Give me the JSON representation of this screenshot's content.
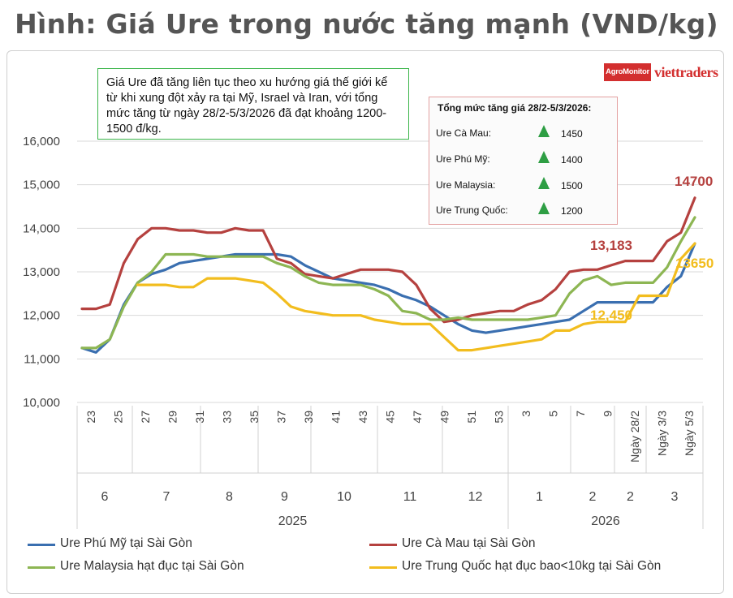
{
  "page_title": "Hình: Giá Ure trong nước tăng mạnh (VND/kg)",
  "logos": {
    "agromonitor": "AgroMonitor",
    "viettraders": "viettraders"
  },
  "note": "Giá Ure đã tăng liên tục theo xu hướng giá thế giới kể từ khi xung đột xảy ra tại Mỹ, Israel và Iran, với tổng mức tăng từ ngày 28/2-5/3/2026 đã đạt khoảng 1200-1500 đ/kg.",
  "increase_table": {
    "title": "Tổng mức tăng giá 28/2-5/3/2026:",
    "rows": [
      {
        "name": "Ure Cà Mau:",
        "value": "1450",
        "icon": "up-triangle-icon"
      },
      {
        "name": "Ure Phú Mỹ:",
        "value": "1400",
        "icon": "up-triangle-icon"
      },
      {
        "name": "Ure Malaysia:",
        "value": "1500",
        "icon": "up-triangle-icon"
      },
      {
        "name": "Ure Trung Quốc:",
        "value": "1200",
        "icon": "up-triangle-icon"
      }
    ]
  },
  "chart_data": {
    "type": "line",
    "ylim": [
      10000,
      16000
    ],
    "yticks": [
      "10,000",
      "11,000",
      "12,000",
      "13,000",
      "14,000",
      "15,000",
      "16,000"
    ],
    "x_labels": [
      "23",
      "25",
      "27",
      "29",
      "31",
      "33",
      "35",
      "37",
      "39",
      "41",
      "43",
      "45",
      "47",
      "49",
      "51",
      "53",
      "3",
      "5",
      "7",
      "9",
      "Ngày 28/2",
      "Ngày 3/3",
      "Ngày 5/3"
    ],
    "month_labels": [
      "6",
      "7",
      "8",
      "9",
      "10",
      "11",
      "12",
      "1",
      "2",
      "2",
      "3"
    ],
    "year_labels": [
      "2025",
      "2026"
    ],
    "series": [
      {
        "name": "Ure Phú Mỹ tại Sài Gòn",
        "color": "#3a6fb0",
        "values": [
          11250,
          11150,
          11450,
          12250,
          12750,
          12950,
          13050,
          13200,
          13250,
          13300,
          13350,
          13400,
          13400,
          13400,
          13400,
          13350,
          13150,
          13000,
          12850,
          12800,
          12750,
          12700,
          12600,
          12450,
          12350,
          12200,
          12000,
          11800,
          11650,
          11600,
          11650,
          11700,
          11750,
          11800,
          11850,
          11900,
          12100,
          12300,
          12300,
          12300,
          12300,
          12300,
          12650,
          12900,
          13650
        ]
      },
      {
        "name": "Ure Cà Mau tại Sài Gòn",
        "color": "#b5413f",
        "values": [
          12150,
          12150,
          12250,
          13200,
          13750,
          14000,
          14000,
          13950,
          13950,
          13900,
          13900,
          14000,
          13950,
          13950,
          13300,
          13200,
          12950,
          12900,
          12850,
          12950,
          13050,
          13050,
          13050,
          13000,
          12700,
          12150,
          11850,
          11900,
          12000,
          12050,
          12100,
          12100,
          12250,
          12350,
          12600,
          13000,
          13050,
          13050,
          13150,
          13250,
          13250,
          13250,
          13700,
          13900,
          14700
        ]
      },
      {
        "name": "Ure Malaysia hạt đục tại Sài Gòn",
        "color": "#8db653",
        "values": [
          11250,
          11250,
          11450,
          12200,
          12750,
          13000,
          13400,
          13400,
          13400,
          13350,
          13350,
          13350,
          13350,
          13350,
          13200,
          13100,
          12900,
          12750,
          12700,
          12700,
          12700,
          12600,
          12450,
          12100,
          12050,
          11900,
          11900,
          11950,
          11900,
          11900,
          11900,
          11900,
          11900,
          11950,
          12000,
          12500,
          12800,
          12900,
          12700,
          12750,
          12750,
          12750,
          13100,
          13700,
          14250
        ]
      },
      {
        "name": "Ure Trung Quốc hạt đục bao<10kg tại Sài Gòn",
        "color": "#f2bd1e",
        "values": [
          null,
          null,
          null,
          null,
          12700,
          12700,
          12700,
          12650,
          12650,
          12850,
          12850,
          12850,
          12800,
          12750,
          12500,
          12200,
          12100,
          12050,
          12000,
          12000,
          12000,
          11900,
          11850,
          11800,
          11800,
          11800,
          11500,
          11200,
          11200,
          11250,
          11300,
          11350,
          11400,
          11450,
          11650,
          11650,
          11800,
          11850,
          11850,
          11850,
          12450,
          12450,
          12450,
          13300,
          13650
        ]
      }
    ],
    "annotations": [
      {
        "text": "14700",
        "color": "#b5413f"
      },
      {
        "text": "13,183",
        "color": "#b5413f"
      },
      {
        "text": "13650",
        "color": "#f2bd1e"
      },
      {
        "text": "12,450",
        "color": "#f2bd1e"
      }
    ],
    "legend_position": "bottom"
  }
}
